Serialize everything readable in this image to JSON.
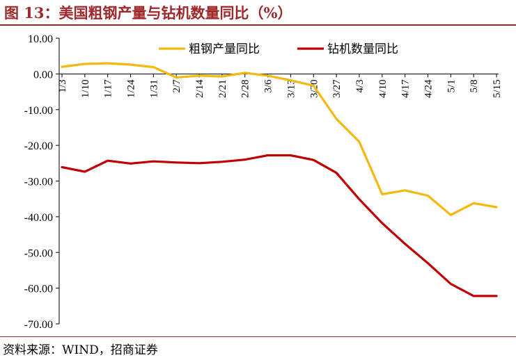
{
  "title": "图 13：美国粗钢产量与钻机数量同比（%）",
  "source": "资料来源：WIND，招商证券",
  "colors": {
    "title": "#a0282a",
    "steel": "#f5b80f",
    "rigs": "#c00000"
  },
  "chart_data": {
    "type": "line",
    "title": "",
    "xlabel": "",
    "ylabel": "",
    "ylim": [
      -70,
      10
    ],
    "yticks": [
      10,
      0,
      -10,
      -20,
      -30,
      -40,
      -50,
      -60,
      -70
    ],
    "grid": false,
    "legend_position": "top-right",
    "categories": [
      "1/3",
      "1/10",
      "1/17",
      "1/24",
      "1/31",
      "2/7",
      "2/14",
      "2/21",
      "2/28",
      "3/6",
      "3/13",
      "3/20",
      "3/27",
      "4/3",
      "4/10",
      "4/17",
      "4/24",
      "5/1",
      "5/8",
      "5/15"
    ],
    "series": [
      {
        "name": "粗钢产量同比",
        "color": "#f5b80f",
        "values": [
          2.0,
          2.8,
          3.0,
          2.6,
          1.9,
          -1.0,
          -0.5,
          -0.7,
          0.3,
          -0.5,
          -1.8,
          -3.3,
          -12.6,
          -19.0,
          -33.7,
          -32.6,
          -34.1,
          -39.5,
          -36.2,
          -37.3
        ]
      },
      {
        "name": "钻机数量同比",
        "color": "#c00000",
        "values": [
          -26.1,
          -27.4,
          -24.3,
          -25.1,
          -24.5,
          -24.8,
          -25.0,
          -24.6,
          -24.0,
          -22.8,
          -22.8,
          -24.1,
          -27.7,
          -35.1,
          -41.8,
          -47.6,
          -53.0,
          -58.8,
          -62.2,
          -62.2
        ]
      }
    ]
  }
}
